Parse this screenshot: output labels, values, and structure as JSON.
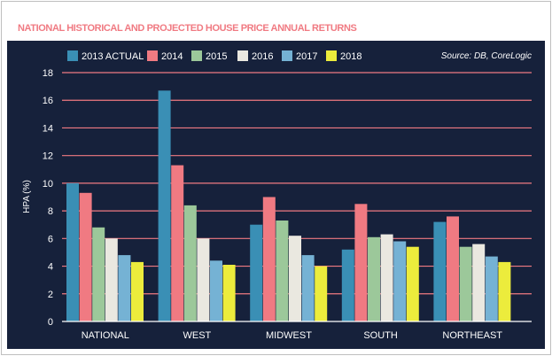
{
  "chart_data": {
    "type": "bar",
    "title": "NATIONAL HISTORICAL AND PROJECTED HOUSE PRICE ANNUAL RETURNS",
    "source": "Source: DB, CoreLogic",
    "ylabel": "HPA (%)",
    "xlabel": "",
    "ylim": [
      0,
      18
    ],
    "yticks": [
      0,
      2,
      4,
      6,
      8,
      10,
      12,
      14,
      16,
      18
    ],
    "grid": true,
    "legend_position": "top",
    "categories": [
      "NATIONAL",
      "WEST",
      "MIDWEST",
      "SOUTH",
      "NORTHEAST"
    ],
    "series": [
      {
        "name": "2013 ACTUAL",
        "color": "#3a8fb5",
        "values": [
          10.0,
          16.7,
          7.0,
          5.2,
          7.2
        ]
      },
      {
        "name": "2014",
        "color": "#f07a82",
        "values": [
          9.3,
          11.3,
          9.0,
          8.5,
          7.6
        ]
      },
      {
        "name": "2015",
        "color": "#9cc89a",
        "values": [
          6.8,
          8.4,
          7.3,
          6.1,
          5.4
        ]
      },
      {
        "name": "2016",
        "color": "#eae8e0",
        "values": [
          6.0,
          6.0,
          6.2,
          6.3,
          5.6
        ]
      },
      {
        "name": "2017",
        "color": "#75b2d4",
        "values": [
          4.8,
          4.4,
          4.8,
          5.8,
          4.7
        ]
      },
      {
        "name": "2018",
        "color": "#ecec3c",
        "values": [
          4.3,
          4.1,
          4.0,
          5.4,
          4.3
        ]
      }
    ]
  }
}
